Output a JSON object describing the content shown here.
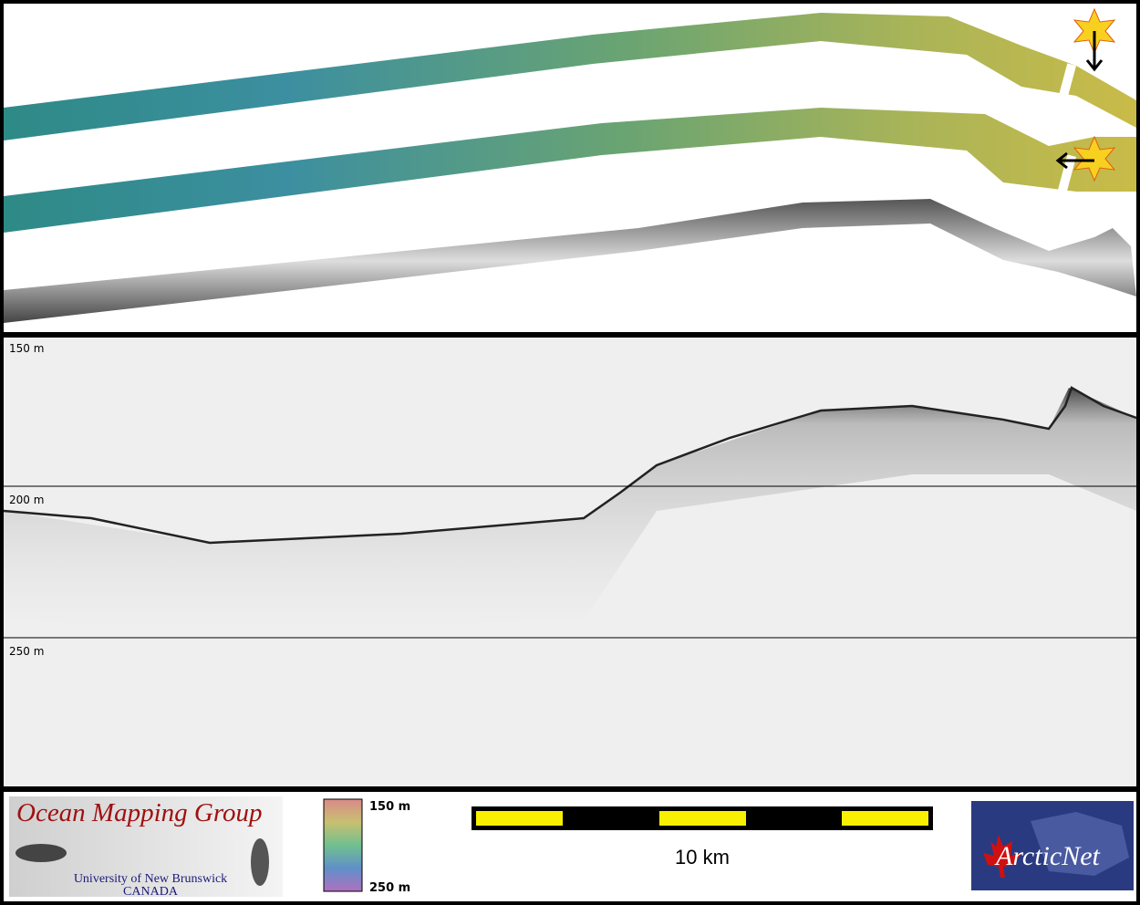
{
  "depth_labels": [
    "150 m",
    "200 m",
    "250 m"
  ],
  "logo": {
    "title": "Ocean Mapping Group",
    "university": "University of New Brunswick",
    "country": "CANADA"
  },
  "colorbar": {
    "top": "150 m",
    "bottom": "250 m"
  },
  "scale_bar": {
    "label": "10 km"
  },
  "partner_logo": {
    "text": "ArcticNet"
  }
}
